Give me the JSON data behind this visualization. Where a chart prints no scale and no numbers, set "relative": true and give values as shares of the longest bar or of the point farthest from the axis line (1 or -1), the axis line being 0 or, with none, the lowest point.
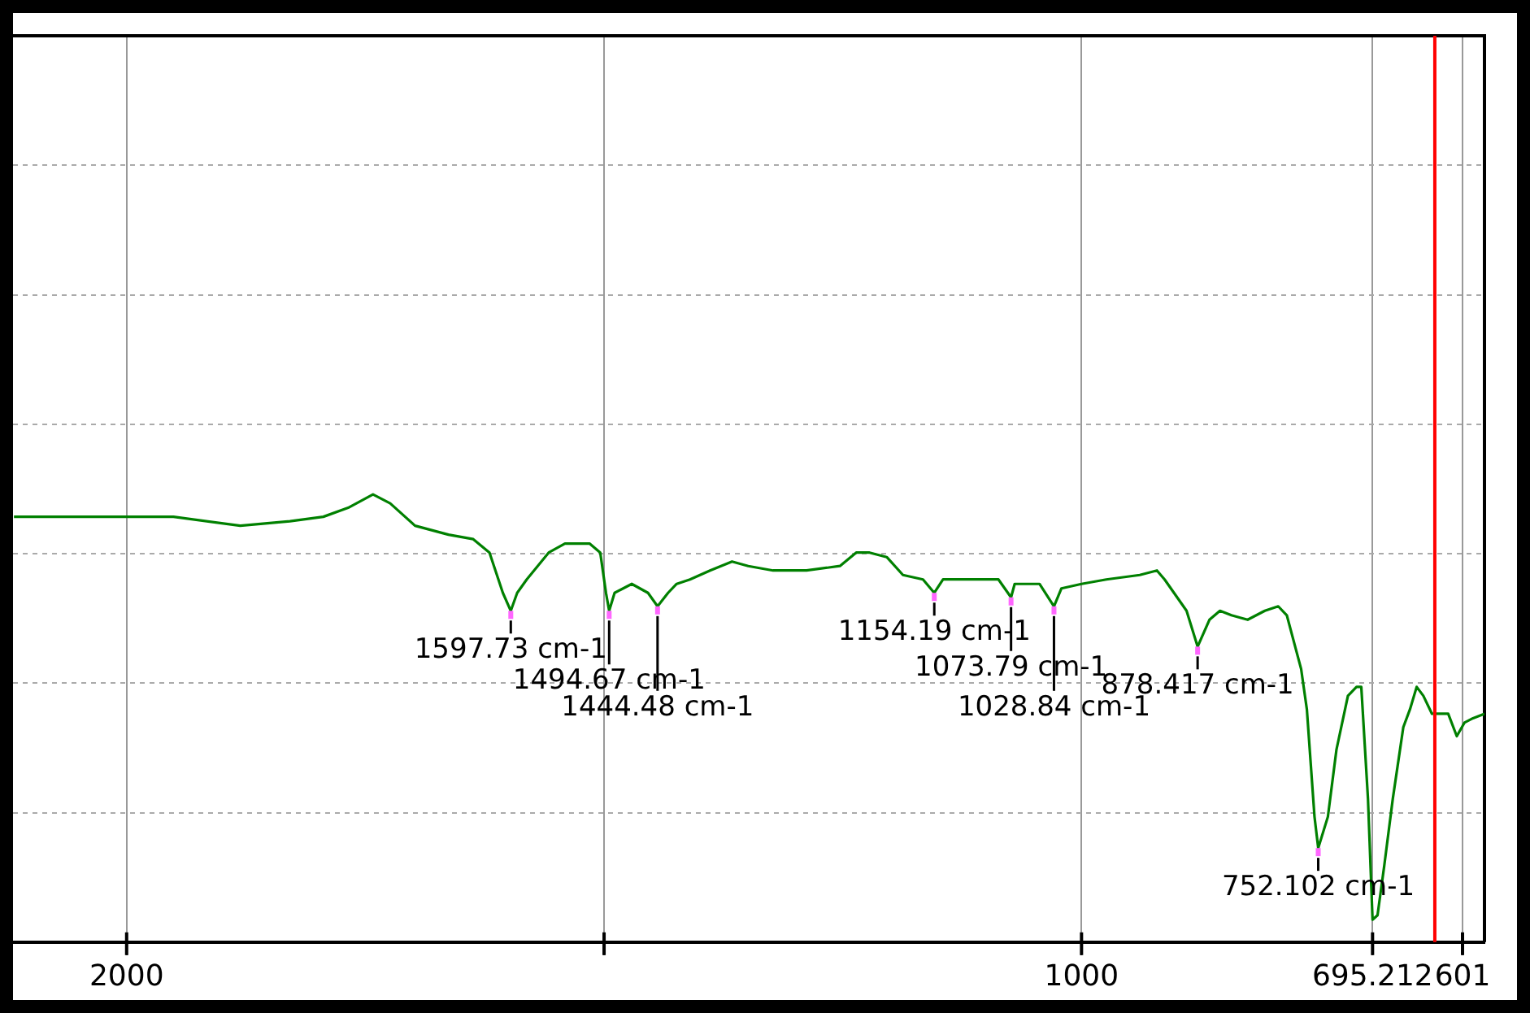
{
  "chart_data": {
    "type": "line",
    "relative": true,
    "grid": true,
    "legend": false,
    "marker": "none",
    "line_style": "solid",
    "xlim": [
      2119,
      578
    ],
    "xticks": [
      2000,
      {
        "value": 1500,
        "label": null
      },
      1000,
      695.212,
      601
    ],
    "series": [
      {
        "color": "#008000",
        "x": [
          2118,
          2000,
          1951,
          1881,
          1829,
          1794,
          1768,
          1742,
          1724,
          1698,
          1663,
          1637,
          1620,
          1606,
          1597.7,
          1591,
          1581,
          1558,
          1541,
          1515,
          1504,
          1498,
          1494.67,
          1489,
          1471,
          1454,
          1444,
          1433,
          1424,
          1410,
          1389,
          1366,
          1349,
          1323,
          1288,
          1253,
          1236,
          1222,
          1204,
          1187,
          1166,
          1154.19,
          1145,
          1113,
          1087,
          1073.8,
          1070,
          1052,
          1044,
          1028.84,
          1021,
          1000,
          974,
          939,
          921,
          913,
          890,
          878.417,
          866,
          855,
          843,
          826,
          808,
          794,
          785,
          770,
          764,
          756,
          752.102,
          742,
          733,
          721,
          712,
          707,
          700,
          695.212,
          690,
          683,
          674,
          663,
          656,
          649,
          642,
          633,
          616,
          607,
          599,
          590,
          578
        ],
        "values": [
          0.95,
          0.95,
          0.95,
          0.93,
          0.94,
          0.95,
          0.97,
          1.0,
          0.98,
          0.93,
          0.91,
          0.9,
          0.87,
          0.78,
          0.74,
          0.78,
          0.81,
          0.87,
          0.89,
          0.89,
          0.87,
          0.78,
          0.74,
          0.78,
          0.8,
          0.78,
          0.75,
          0.78,
          0.8,
          0.81,
          0.83,
          0.85,
          0.84,
          0.83,
          0.83,
          0.84,
          0.87,
          0.87,
          0.86,
          0.82,
          0.81,
          0.78,
          0.81,
          0.81,
          0.81,
          0.77,
          0.8,
          0.8,
          0.8,
          0.75,
          0.79,
          0.8,
          0.81,
          0.82,
          0.83,
          0.81,
          0.74,
          0.66,
          0.72,
          0.74,
          0.73,
          0.72,
          0.74,
          0.75,
          0.73,
          0.61,
          0.52,
          0.28,
          0.21,
          0.28,
          0.43,
          0.55,
          0.57,
          0.57,
          0.32,
          0.05,
          0.06,
          0.17,
          0.32,
          0.48,
          0.52,
          0.57,
          0.55,
          0.51,
          0.51,
          0.46,
          0.49,
          0.5,
          0.51
        ]
      }
    ],
    "ref_lines": [
      {
        "axis": "x",
        "value": 630,
        "color": "#ff0000"
      }
    ],
    "annotations": [
      {
        "text": "1597.73 cm-1",
        "x": 1597.7,
        "y": 0.74
      },
      {
        "text": "1494.67 cm-1",
        "x": 1494.67,
        "y": 0.74
      },
      {
        "text": "1444.48 cm-1",
        "x": 1444,
        "y": 0.75
      },
      {
        "text": "1154.19 cm-1",
        "x": 1154.19,
        "y": 0.78
      },
      {
        "text": "1073.79 cm-1",
        "x": 1073.8,
        "y": 0.77
      },
      {
        "text": "1028.84 cm-1",
        "x": 1028.84,
        "y": 0.75
      },
      {
        "text": "878.417 cm-1",
        "x": 878.417,
        "y": 0.66
      },
      {
        "text": "752.102 cm-1",
        "x": 752.102,
        "y": 0.21
      }
    ]
  }
}
